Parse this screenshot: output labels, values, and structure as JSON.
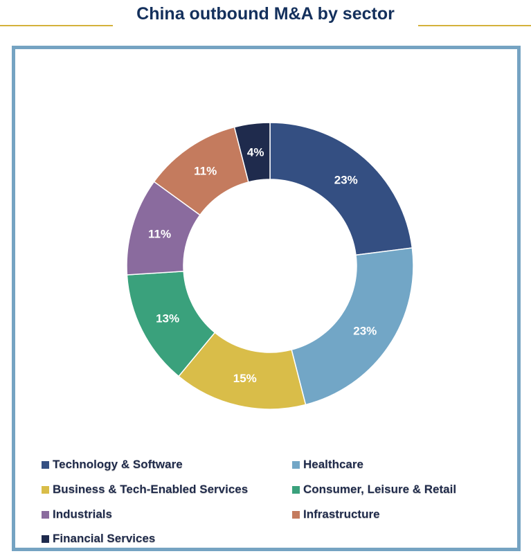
{
  "title": "China outbound M&A by sector",
  "colors": {
    "title_line": "#d4b13a",
    "title_text": "#14305c",
    "frame_border": "#75a3c2"
  },
  "chart_data": {
    "type": "pie",
    "donut": true,
    "title": "China outbound M&A by sector",
    "legend_position": "bottom",
    "slices": [
      {
        "name": "Technology & Software",
        "value": 23,
        "label": "23%",
        "color": "#344f82"
      },
      {
        "name": "Healthcare",
        "value": 23,
        "label": "23%",
        "color": "#72a6c6"
      },
      {
        "name": "Business & Tech-Enabled Services",
        "value": 15,
        "label": "15%",
        "color": "#d9bd49"
      },
      {
        "name": "Consumer, Leisure & Retail",
        "value": 13,
        "label": "13%",
        "color": "#3aa17c"
      },
      {
        "name": "Industrials",
        "value": 11,
        "label": "11%",
        "color": "#8a6b9e"
      },
      {
        "name": "Infrastructure",
        "value": 11,
        "label": "11%",
        "color": "#c47b5e"
      },
      {
        "name": "Financial Services",
        "value": 4,
        "label": "4%",
        "color": "#1f2b4d"
      }
    ]
  }
}
